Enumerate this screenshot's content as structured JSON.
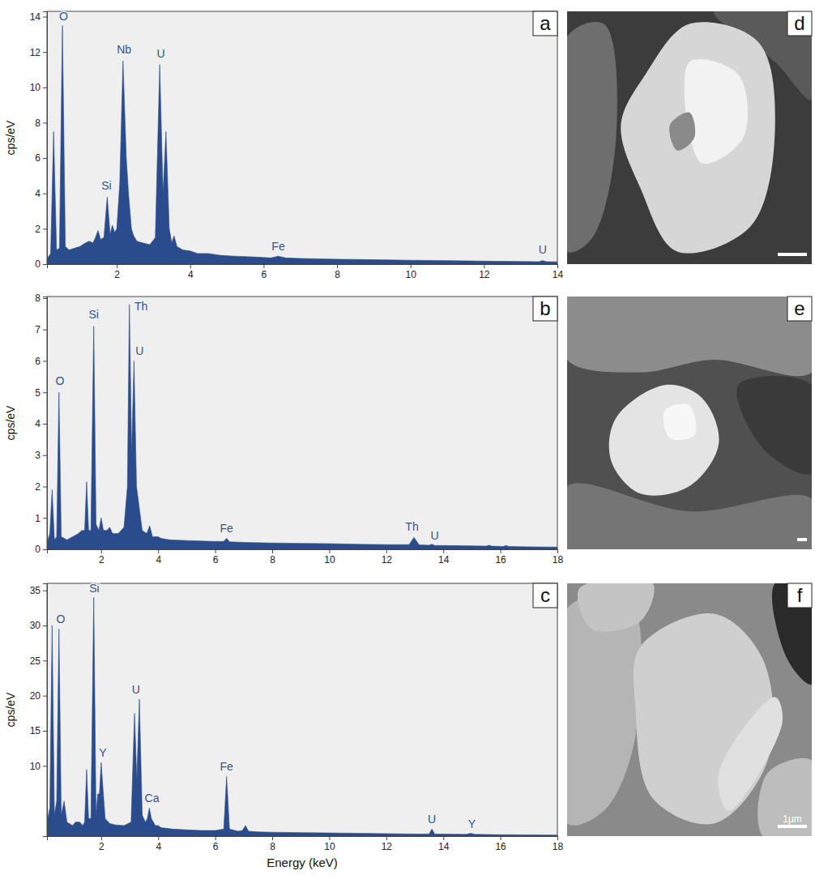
{
  "chart_data": [
    {
      "type": "area",
      "panel_label": "a",
      "color": "#2b4c8c",
      "y_label": "cps/eV",
      "xlim": [
        0.1,
        14
      ],
      "ylim": [
        0,
        14.3
      ],
      "xticks": [
        2,
        4,
        6,
        8,
        10,
        12,
        14
      ],
      "yticks": [
        0,
        2,
        4,
        6,
        8,
        10,
        12,
        14
      ],
      "x": [
        0.1,
        0.2,
        0.28,
        0.36,
        0.44,
        0.52,
        0.6,
        0.7,
        0.85,
        1.0,
        1.15,
        1.25,
        1.35,
        1.42,
        1.49,
        1.56,
        1.65,
        1.74,
        1.82,
        1.88,
        1.94,
        2.0,
        2.08,
        2.17,
        2.26,
        2.32,
        2.4,
        2.46,
        2.55,
        2.7,
        2.9,
        3.05,
        3.17,
        3.26,
        3.34,
        3.43,
        3.5,
        3.56,
        3.64,
        3.8,
        4.0,
        4.2,
        4.5,
        4.8,
        5.2,
        5.8,
        6.2,
        6.4,
        6.6,
        7,
        8,
        9,
        10,
        11,
        12,
        13,
        13.5,
        13.6,
        13.7,
        14
      ],
      "values": [
        0.3,
        0.6,
        7.5,
        0.8,
        0.9,
        13.5,
        1.0,
        0.8,
        0.9,
        1.0,
        1.2,
        1.3,
        1.2,
        1.5,
        1.9,
        1.4,
        1.5,
        3.8,
        1.7,
        2.2,
        1.8,
        2.0,
        4.5,
        11.5,
        6.0,
        4.0,
        2.0,
        1.6,
        1.3,
        1.2,
        1.1,
        1.5,
        11.3,
        4.0,
        7.5,
        2.0,
        1.2,
        1.6,
        1.0,
        0.8,
        0.75,
        0.6,
        0.6,
        0.5,
        0.45,
        0.4,
        0.35,
        0.45,
        0.35,
        0.32,
        0.28,
        0.25,
        0.22,
        0.2,
        0.17,
        0.15,
        0.14,
        0.2,
        0.14,
        0.13
      ],
      "annotations": [
        {
          "text": "O",
          "x": 0.55,
          "y": 13.8
        },
        {
          "text": "Nb",
          "x": 2.2,
          "y": 11.9
        },
        {
          "text": "U",
          "x": 3.2,
          "y": 11.7
        },
        {
          "text": "Si",
          "x": 1.72,
          "y": 4.2
        },
        {
          "text": "Fe",
          "x": 6.4,
          "y": 0.8
        },
        {
          "text": "U",
          "x": 13.6,
          "y": 0.6
        }
      ]
    },
    {
      "type": "area",
      "panel_label": "b",
      "color": "#2b4c8c",
      "y_label": "cps/eV",
      "xlim": [
        0.1,
        18
      ],
      "ylim": [
        0,
        8.05
      ],
      "xticks": [
        2,
        4,
        6,
        8,
        10,
        12,
        14,
        16,
        18
      ],
      "yticks": [
        0,
        1,
        2,
        3,
        4,
        5,
        6,
        7,
        8
      ],
      "x": [
        0.1,
        0.2,
        0.28,
        0.36,
        0.44,
        0.52,
        0.6,
        0.8,
        1.0,
        1.2,
        1.32,
        1.42,
        1.49,
        1.56,
        1.64,
        1.74,
        1.82,
        1.92,
        2.0,
        2.08,
        2.2,
        2.3,
        2.4,
        2.6,
        2.8,
        2.92,
        2.99,
        3.07,
        3.15,
        3.24,
        3.34,
        3.44,
        3.6,
        3.7,
        3.8,
        4.0,
        4.1,
        4.4,
        5,
        6,
        6.3,
        6.4,
        6.5,
        7,
        8,
        9,
        10,
        11,
        12,
        12.8,
        12.97,
        13.15,
        13.5,
        13.6,
        13.7,
        14,
        15,
        15.5,
        15.6,
        15.7,
        16.1,
        16.2,
        16.3,
        17,
        18
      ],
      "values": [
        0.2,
        0.5,
        1.9,
        0.3,
        0.4,
        5.0,
        0.4,
        0.3,
        0.4,
        0.5,
        0.6,
        0.6,
        2.15,
        0.6,
        0.6,
        7.1,
        0.8,
        0.6,
        1.0,
        0.6,
        0.6,
        0.7,
        0.5,
        0.5,
        0.7,
        2.0,
        7.8,
        3.0,
        6.0,
        2.0,
        1.3,
        0.6,
        0.5,
        0.75,
        0.4,
        0.4,
        0.35,
        0.3,
        0.28,
        0.25,
        0.25,
        0.35,
        0.24,
        0.22,
        0.2,
        0.19,
        0.18,
        0.16,
        0.15,
        0.15,
        0.38,
        0.14,
        0.13,
        0.16,
        0.12,
        0.12,
        0.11,
        0.1,
        0.13,
        0.1,
        0.09,
        0.12,
        0.09,
        0.08,
        0.07
      ],
      "annotations": [
        {
          "text": "O",
          "x": 0.55,
          "y": 5.25
        },
        {
          "text": "Si",
          "x": 1.74,
          "y": 7.35
        },
        {
          "text": "Th",
          "x": 3.4,
          "y": 7.6
        },
        {
          "text": "U",
          "x": 3.35,
          "y": 6.2
        },
        {
          "text": "Fe",
          "x": 6.4,
          "y": 0.55
        },
        {
          "text": "Th",
          "x": 12.9,
          "y": 0.6
        },
        {
          "text": "U",
          "x": 13.7,
          "y": 0.3
        }
      ]
    },
    {
      "type": "area",
      "panel_label": "c",
      "color": "#2b4c8c",
      "y_label": "cps/eV",
      "x_label": "Energy (keV)",
      "xlim": [
        0.1,
        18
      ],
      "ylim": [
        0,
        36
      ],
      "xticks": [
        2,
        4,
        6,
        8,
        10,
        12,
        14,
        16,
        18
      ],
      "yticks": [
        10,
        15,
        20,
        25,
        30,
        35
      ],
      "x": [
        0.1,
        0.2,
        0.28,
        0.36,
        0.44,
        0.52,
        0.6,
        0.7,
        0.8,
        1.0,
        1.1,
        1.25,
        1.35,
        1.42,
        1.49,
        1.56,
        1.64,
        1.74,
        1.82,
        1.88,
        1.94,
        2.0,
        2.06,
        2.14,
        2.3,
        2.5,
        2.8,
        3.05,
        3.17,
        3.25,
        3.34,
        3.44,
        3.55,
        3.62,
        3.69,
        3.76,
        3.9,
        4.0,
        4.1,
        4.5,
        5,
        5.5,
        6.0,
        6.3,
        6.4,
        6.5,
        6.8,
        6.95,
        7.06,
        7.17,
        7.5,
        8,
        9,
        10,
        11,
        12,
        13,
        13.5,
        13.6,
        13.7,
        14,
        14.8,
        14.96,
        15.1,
        16,
        17,
        18
      ],
      "values": [
        2,
        4,
        30,
        3,
        5,
        29.5,
        3,
        5,
        2,
        1.5,
        2,
        2,
        1.5,
        2,
        9.5,
        2.5,
        2.5,
        34,
        3,
        6,
        6,
        10.5,
        7,
        2.5,
        1.8,
        1.6,
        1.5,
        2,
        17.5,
        8,
        19.5,
        3,
        2,
        2.5,
        4,
        2.5,
        1.5,
        1.5,
        1.2,
        1.0,
        0.9,
        0.8,
        0.8,
        1.0,
        8.5,
        1.0,
        0.7,
        0.8,
        1.5,
        0.7,
        0.6,
        0.55,
        0.5,
        0.45,
        0.4,
        0.35,
        0.3,
        0.3,
        1.0,
        0.3,
        0.28,
        0.25,
        0.4,
        0.25,
        0.2,
        0.18,
        0.15
      ],
      "annotations": [
        {
          "text": "O",
          "x": 0.58,
          "y": 30.4
        },
        {
          "text": "Si",
          "x": 1.76,
          "y": 34.7
        },
        {
          "text": "Y",
          "x": 2.06,
          "y": 11.3
        },
        {
          "text": "U",
          "x": 3.22,
          "y": 20.3
        },
        {
          "text": "Ca",
          "x": 3.78,
          "y": 4.8
        },
        {
          "text": "Fe",
          "x": 6.4,
          "y": 9.4
        },
        {
          "text": "U",
          "x": 13.6,
          "y": 1.8
        },
        {
          "text": "Y",
          "x": 15.0,
          "y": 1.2
        }
      ]
    }
  ],
  "images": [
    {
      "panel_label": "d"
    },
    {
      "panel_label": "e"
    },
    {
      "panel_label": "f",
      "scale_bar_label": "1μm"
    }
  ]
}
